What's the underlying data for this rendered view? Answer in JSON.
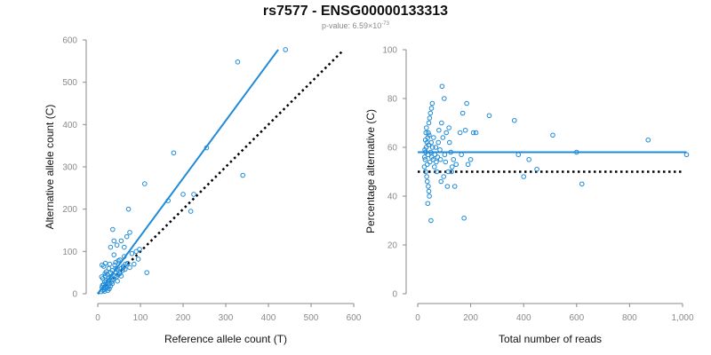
{
  "header": {
    "title": "rs7577 - ENSG00000133313",
    "pvalue_prefix": "p-value: 6.59×10",
    "pvalue_exp": "-73"
  },
  "colors": {
    "accent": "#1f8bd8",
    "reference_line": "#000000",
    "axis": "#8a8a8a"
  },
  "chart_data": [
    {
      "type": "scatter",
      "xlabel": "Reference allele count (T)",
      "ylabel": "Alternative allele count (C)",
      "xlim": [
        0,
        600
      ],
      "ylim": [
        0,
        600
      ],
      "xticks": [
        "0",
        "100",
        "200",
        "300",
        "400",
        "500",
        "600"
      ],
      "yticks": [
        "0",
        "100",
        "200",
        "300",
        "400",
        "500",
        "600"
      ],
      "grid": false,
      "fit_line": {
        "x": [
          0,
          423
        ],
        "y": [
          0,
          577
        ],
        "color": "#1f8bd8"
      },
      "reference_line": {
        "x": [
          0,
          575
        ],
        "y": [
          0,
          575
        ],
        "style": "dotted"
      },
      "points": [
        [
          12,
          8
        ],
        [
          15,
          10
        ],
        [
          18,
          12
        ],
        [
          10,
          15
        ],
        [
          20,
          18
        ],
        [
          22,
          14
        ],
        [
          25,
          20
        ],
        [
          14,
          22
        ],
        [
          28,
          25
        ],
        [
          30,
          18
        ],
        [
          16,
          28
        ],
        [
          19,
          32
        ],
        [
          24,
          30
        ],
        [
          32,
          28
        ],
        [
          35,
          33
        ],
        [
          12,
          36
        ],
        [
          26,
          38
        ],
        [
          38,
          35
        ],
        [
          40,
          42
        ],
        [
          18,
          42
        ],
        [
          22,
          46
        ],
        [
          44,
          40
        ],
        [
          30,
          50
        ],
        [
          48,
          45
        ],
        [
          20,
          52
        ],
        [
          34,
          55
        ],
        [
          50,
          50
        ],
        [
          26,
          60
        ],
        [
          14,
          65
        ],
        [
          10,
          68
        ],
        [
          18,
          72
        ],
        [
          28,
          70
        ],
        [
          40,
          68
        ],
        [
          42,
          74
        ],
        [
          55,
          60
        ],
        [
          58,
          55
        ],
        [
          45,
          58
        ],
        [
          60,
          65
        ],
        [
          65,
          70
        ],
        [
          52,
          80
        ],
        [
          38,
          92
        ],
        [
          30,
          110
        ],
        [
          45,
          115
        ],
        [
          62,
          110
        ],
        [
          55,
          125
        ],
        [
          38,
          125
        ],
        [
          35,
          152
        ],
        [
          68,
          135
        ],
        [
          75,
          145
        ],
        [
          72,
          200
        ],
        [
          90,
          100
        ],
        [
          98,
          105
        ],
        [
          80,
          95
        ],
        [
          115,
          50
        ],
        [
          110,
          260
        ],
        [
          165,
          220
        ],
        [
          178,
          333
        ],
        [
          200,
          235
        ],
        [
          218,
          195
        ],
        [
          225,
          235
        ],
        [
          255,
          345
        ],
        [
          328,
          548
        ],
        [
          340,
          280
        ],
        [
          440,
          577
        ],
        [
          60,
          62
        ],
        [
          70,
          72
        ],
        [
          8,
          5
        ],
        [
          11,
          20
        ],
        [
          16,
          6
        ],
        [
          24,
          8
        ],
        [
          34,
          24
        ],
        [
          46,
          30
        ],
        [
          36,
          44
        ],
        [
          55,
          42
        ],
        [
          52,
          48
        ],
        [
          64,
          58
        ],
        [
          75,
          62
        ],
        [
          85,
          70
        ],
        [
          95,
          82
        ],
        [
          62,
          88
        ],
        [
          48,
          78
        ],
        [
          42,
          60
        ],
        [
          17,
          48
        ],
        [
          9,
          40
        ],
        [
          27,
          12
        ],
        [
          31,
          40
        ]
      ]
    },
    {
      "type": "scatter",
      "xlabel": "Total number of reads",
      "ylabel": "Percentage alternative (C)",
      "xlim": [
        0,
        1000
      ],
      "ylim": [
        0,
        100
      ],
      "xticks": [
        "0",
        "200",
        "400",
        "600",
        "800",
        "1,000"
      ],
      "yticks": [
        "0",
        "20",
        "40",
        "60",
        "80",
        "100"
      ],
      "grid": false,
      "fit_line": {
        "x": [
          0,
          1015
        ],
        "y": [
          58,
          58
        ],
        "color": "#1f8bd8"
      },
      "reference_line": {
        "x": [
          0,
          1000
        ],
        "y": [
          50,
          50
        ],
        "style": "dotted"
      },
      "points": [
        [
          25,
          52
        ],
        [
          28,
          55
        ],
        [
          30,
          58
        ],
        [
          32,
          60
        ],
        [
          35,
          62
        ],
        [
          38,
          64
        ],
        [
          40,
          66
        ],
        [
          42,
          70
        ],
        [
          45,
          72
        ],
        [
          48,
          74
        ],
        [
          52,
          76
        ],
        [
          55,
          78
        ],
        [
          30,
          50
        ],
        [
          34,
          48
        ],
        [
          36,
          46
        ],
        [
          40,
          44
        ],
        [
          42,
          42
        ],
        [
          44,
          40
        ],
        [
          38,
          37
        ],
        [
          50,
          30
        ],
        [
          26,
          56
        ],
        [
          27,
          59
        ],
        [
          29,
          63
        ],
        [
          31,
          66
        ],
        [
          33,
          68
        ],
        [
          36,
          53
        ],
        [
          39,
          57
        ],
        [
          41,
          61
        ],
        [
          43,
          65
        ],
        [
          46,
          54
        ],
        [
          49,
          58
        ],
        [
          51,
          62
        ],
        [
          53,
          56
        ],
        [
          56,
          60
        ],
        [
          58,
          55
        ],
        [
          60,
          64
        ],
        [
          63,
          52
        ],
        [
          65,
          57
        ],
        [
          68,
          60
        ],
        [
          70,
          54
        ],
        [
          72,
          50
        ],
        [
          75,
          56
        ],
        [
          78,
          62
        ],
        [
          80,
          67
        ],
        [
          84,
          59
        ],
        [
          86,
          55
        ],
        [
          90,
          70
        ],
        [
          92,
          85
        ],
        [
          95,
          64
        ],
        [
          100,
          80
        ],
        [
          102,
          57
        ],
        [
          105,
          54
        ],
        [
          108,
          66
        ],
        [
          112,
          44
        ],
        [
          118,
          68
        ],
        [
          120,
          62
        ],
        [
          125,
          58
        ],
        [
          128,
          50
        ],
        [
          135,
          55
        ],
        [
          140,
          44
        ],
        [
          145,
          53
        ],
        [
          160,
          66
        ],
        [
          165,
          57
        ],
        [
          170,
          74
        ],
        [
          175,
          31
        ],
        [
          180,
          67
        ],
        [
          185,
          78
        ],
        [
          190,
          53
        ],
        [
          200,
          55
        ],
        [
          210,
          66
        ],
        [
          220,
          66
        ],
        [
          270,
          73
        ],
        [
          365,
          71
        ],
        [
          380,
          57
        ],
        [
          400,
          48
        ],
        [
          420,
          55
        ],
        [
          450,
          51
        ],
        [
          510,
          65
        ],
        [
          600,
          58
        ],
        [
          620,
          45
        ],
        [
          870,
          63
        ],
        [
          1015,
          57
        ],
        [
          88,
          46
        ],
        [
          98,
          48
        ],
        [
          115,
          50
        ],
        [
          130,
          52
        ]
      ]
    }
  ]
}
